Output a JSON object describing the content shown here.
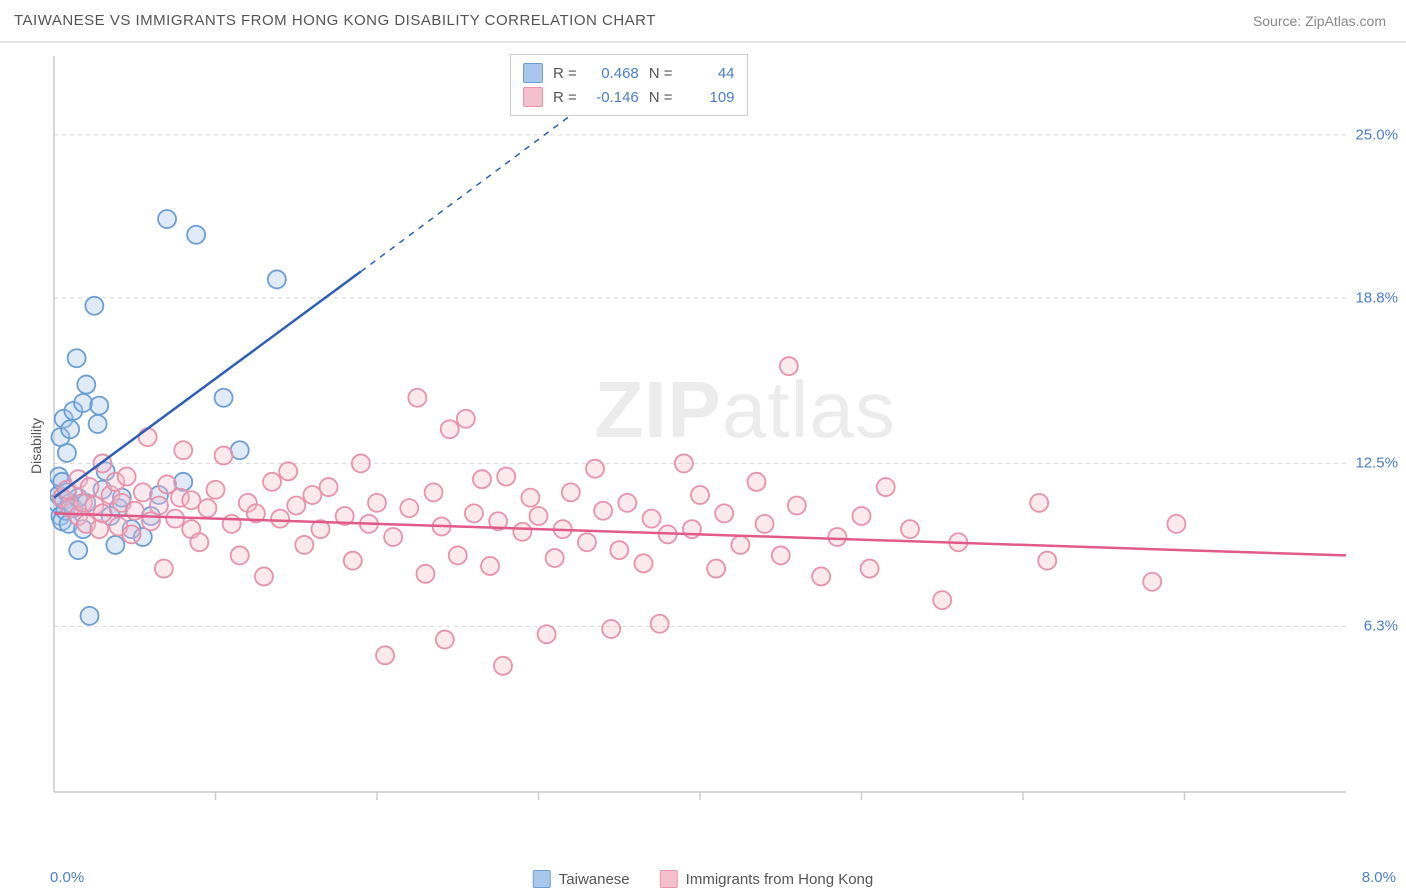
{
  "header": {
    "title": "TAIWANESE VS IMMIGRANTS FROM HONG KONG DISABILITY CORRELATION CHART",
    "source": "Source: ZipAtlas.com"
  },
  "ylabel": "Disability",
  "watermark_bold": "ZIP",
  "watermark_light": "atlas",
  "chart": {
    "type": "scatter",
    "background_color": "#ffffff",
    "grid_color": "#d8d8d8",
    "grid_dash": "4,4",
    "axis_color": "#cccccc",
    "xlim": [
      0.0,
      8.0
    ],
    "ylim": [
      0.0,
      28.0
    ],
    "yticks": [
      {
        "value": 6.3,
        "label": "6.3%"
      },
      {
        "value": 12.5,
        "label": "12.5%"
      },
      {
        "value": 18.8,
        "label": "18.8%"
      },
      {
        "value": 25.0,
        "label": "25.0%"
      }
    ],
    "xtick_minor": [
      1.0,
      2.0,
      3.0,
      4.0,
      5.0,
      6.0,
      7.0
    ],
    "xaxis_labels": {
      "min": "0.0%",
      "max": "8.0%"
    },
    "marker_radius": 9,
    "marker_stroke_width": 1.8,
    "marker_fill_opacity": 0.35,
    "trend_line_width": 2.5,
    "series": [
      {
        "name": "Taiwanese",
        "fill": "#a9c7ea",
        "stroke": "#6c9ed6",
        "line_color": "#2c5fb5",
        "r_label": "R =",
        "r_value": "0.468",
        "n_label": "N =",
        "n_value": "44",
        "trend": {
          "x1": 0.0,
          "y1": 11.2,
          "x2_solid": 1.9,
          "y2_solid": 19.8,
          "x2_dash": 3.3,
          "y2_dash": 26.2
        },
        "points": [
          [
            0.02,
            11.0
          ],
          [
            0.03,
            12.0
          ],
          [
            0.03,
            11.3
          ],
          [
            0.04,
            10.5
          ],
          [
            0.04,
            13.5
          ],
          [
            0.05,
            10.3
          ],
          [
            0.05,
            11.8
          ],
          [
            0.06,
            14.2
          ],
          [
            0.06,
            11.1
          ],
          [
            0.07,
            10.7
          ],
          [
            0.08,
            12.9
          ],
          [
            0.08,
            11.4
          ],
          [
            0.09,
            10.2
          ],
          [
            0.1,
            13.8
          ],
          [
            0.1,
            11.0
          ],
          [
            0.12,
            14.5
          ],
          [
            0.12,
            10.8
          ],
          [
            0.14,
            16.5
          ],
          [
            0.15,
            11.2
          ],
          [
            0.15,
            9.2
          ],
          [
            0.18,
            10.0
          ],
          [
            0.18,
            14.8
          ],
          [
            0.2,
            15.5
          ],
          [
            0.2,
            11.0
          ],
          [
            0.22,
            6.7
          ],
          [
            0.25,
            18.5
          ],
          [
            0.27,
            14.0
          ],
          [
            0.28,
            14.7
          ],
          [
            0.3,
            11.5
          ],
          [
            0.32,
            12.2
          ],
          [
            0.35,
            10.5
          ],
          [
            0.38,
            9.4
          ],
          [
            0.4,
            10.8
          ],
          [
            0.42,
            11.2
          ],
          [
            0.48,
            10.0
          ],
          [
            0.55,
            9.7
          ],
          [
            0.6,
            10.5
          ],
          [
            0.65,
            11.3
          ],
          [
            0.7,
            21.8
          ],
          [
            0.8,
            11.8
          ],
          [
            0.88,
            21.2
          ],
          [
            1.05,
            15.0
          ],
          [
            1.15,
            13.0
          ],
          [
            1.38,
            19.5
          ]
        ]
      },
      {
        "name": "Immigrants from Hong Kong",
        "fill": "#f4c0ce",
        "stroke": "#e892ab",
        "line_color": "#e05a8a",
        "r_label": "R =",
        "r_value": "-0.146",
        "n_label": "N =",
        "n_value": "109",
        "trend": {
          "x1": 0.0,
          "y1": 10.6,
          "x2_solid": 8.0,
          "y2_solid": 9.0
        },
        "points": [
          [
            0.05,
            11.2
          ],
          [
            0.08,
            11.5
          ],
          [
            0.1,
            10.8
          ],
          [
            0.15,
            10.5
          ],
          [
            0.15,
            11.9
          ],
          [
            0.18,
            11.0
          ],
          [
            0.2,
            10.2
          ],
          [
            0.22,
            11.6
          ],
          [
            0.25,
            10.9
          ],
          [
            0.28,
            10.0
          ],
          [
            0.3,
            12.5
          ],
          [
            0.3,
            10.6
          ],
          [
            0.35,
            11.3
          ],
          [
            0.38,
            11.8
          ],
          [
            0.4,
            10.1
          ],
          [
            0.42,
            11.0
          ],
          [
            0.45,
            12.0
          ],
          [
            0.48,
            9.8
          ],
          [
            0.5,
            10.7
          ],
          [
            0.55,
            11.4
          ],
          [
            0.58,
            13.5
          ],
          [
            0.6,
            10.3
          ],
          [
            0.65,
            10.9
          ],
          [
            0.68,
            8.5
          ],
          [
            0.7,
            11.7
          ],
          [
            0.75,
            10.4
          ],
          [
            0.78,
            11.2
          ],
          [
            0.8,
            13.0
          ],
          [
            0.85,
            10.0
          ],
          [
            0.85,
            11.1
          ],
          [
            0.9,
            9.5
          ],
          [
            0.95,
            10.8
          ],
          [
            1.0,
            11.5
          ],
          [
            1.05,
            12.8
          ],
          [
            1.1,
            10.2
          ],
          [
            1.15,
            9.0
          ],
          [
            1.2,
            11.0
          ],
          [
            1.25,
            10.6
          ],
          [
            1.3,
            8.2
          ],
          [
            1.35,
            11.8
          ],
          [
            1.4,
            10.4
          ],
          [
            1.45,
            12.2
          ],
          [
            1.5,
            10.9
          ],
          [
            1.55,
            9.4
          ],
          [
            1.6,
            11.3
          ],
          [
            1.65,
            10.0
          ],
          [
            1.7,
            11.6
          ],
          [
            1.8,
            10.5
          ],
          [
            1.85,
            8.8
          ],
          [
            1.9,
            12.5
          ],
          [
            1.95,
            10.2
          ],
          [
            2.0,
            11.0
          ],
          [
            2.05,
            5.2
          ],
          [
            2.1,
            9.7
          ],
          [
            2.2,
            10.8
          ],
          [
            2.25,
            15.0
          ],
          [
            2.3,
            8.3
          ],
          [
            2.35,
            11.4
          ],
          [
            2.4,
            10.1
          ],
          [
            2.42,
            5.8
          ],
          [
            2.45,
            13.8
          ],
          [
            2.5,
            9.0
          ],
          [
            2.55,
            14.2
          ],
          [
            2.6,
            10.6
          ],
          [
            2.65,
            11.9
          ],
          [
            2.7,
            8.6
          ],
          [
            2.75,
            10.3
          ],
          [
            2.78,
            4.8
          ],
          [
            2.8,
            12.0
          ],
          [
            2.9,
            9.9
          ],
          [
            2.95,
            11.2
          ],
          [
            3.0,
            10.5
          ],
          [
            3.05,
            6.0
          ],
          [
            3.1,
            8.9
          ],
          [
            3.15,
            10.0
          ],
          [
            3.2,
            11.4
          ],
          [
            3.3,
            9.5
          ],
          [
            3.35,
            12.3
          ],
          [
            3.4,
            10.7
          ],
          [
            3.45,
            6.2
          ],
          [
            3.5,
            9.2
          ],
          [
            3.55,
            11.0
          ],
          [
            3.65,
            8.7
          ],
          [
            3.7,
            10.4
          ],
          [
            3.75,
            6.4
          ],
          [
            3.8,
            9.8
          ],
          [
            3.9,
            12.5
          ],
          [
            3.95,
            10.0
          ],
          [
            4.0,
            11.3
          ],
          [
            4.1,
            8.5
          ],
          [
            4.15,
            10.6
          ],
          [
            4.25,
            9.4
          ],
          [
            4.35,
            11.8
          ],
          [
            4.4,
            10.2
          ],
          [
            4.5,
            9.0
          ],
          [
            4.55,
            16.2
          ],
          [
            4.6,
            10.9
          ],
          [
            4.75,
            8.2
          ],
          [
            4.85,
            9.7
          ],
          [
            5.0,
            10.5
          ],
          [
            5.05,
            8.5
          ],
          [
            5.15,
            11.6
          ],
          [
            5.3,
            10.0
          ],
          [
            5.5,
            7.3
          ],
          [
            5.6,
            9.5
          ],
          [
            6.1,
            11.0
          ],
          [
            6.15,
            8.8
          ],
          [
            6.8,
            8.0
          ],
          [
            6.95,
            10.2
          ]
        ]
      }
    ]
  },
  "legend_bottom": [
    {
      "label": "Taiwanese",
      "fill": "#a9c7ea",
      "stroke": "#6c9ed6"
    },
    {
      "label": "Immigrants from Hong Kong",
      "fill": "#f4c0ce",
      "stroke": "#e892ab"
    }
  ]
}
